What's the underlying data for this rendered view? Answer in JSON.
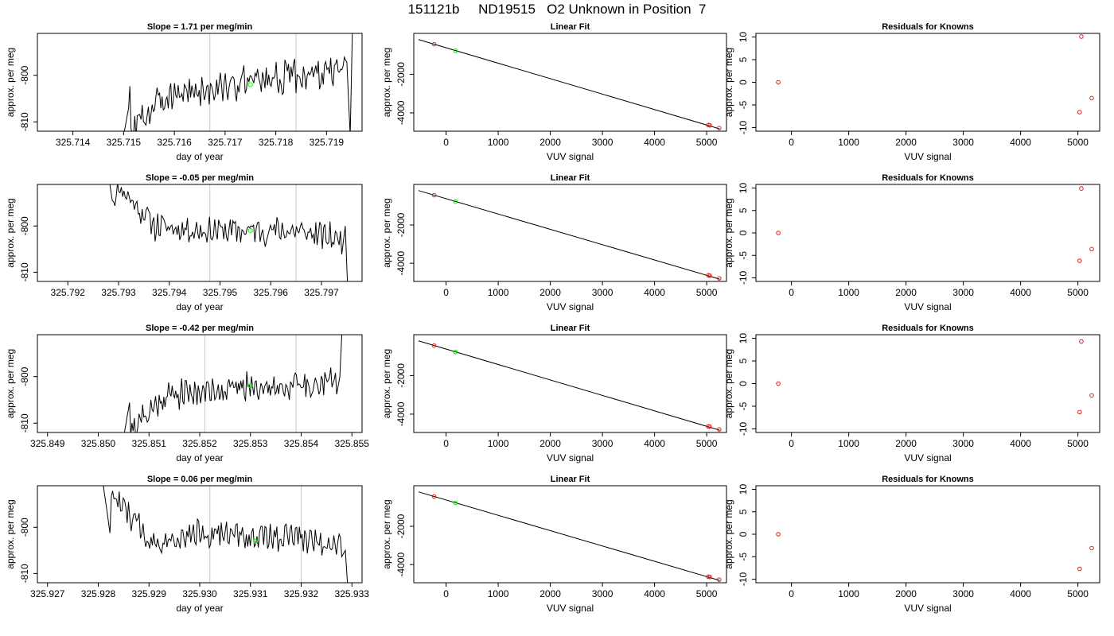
{
  "page": {
    "title": "151121b     ND19515   O2 Unknown in Position  7"
  },
  "chart_data": [
    {
      "type": "line",
      "title": "Slope =  1.71  per meg/min",
      "xlabel": "day of year",
      "ylabel": "approx. per meg",
      "xlim": [
        325.7133,
        325.7197
      ],
      "ylim": [
        -812,
        -791
      ],
      "xticks": [
        "325.714",
        "325.715",
        "325.716",
        "325.717",
        "325.718",
        "325.719"
      ],
      "yticks": [
        "-800",
        "-810"
      ],
      "vlines": [
        325.7167,
        325.7184
      ],
      "point": {
        "x": 325.7175,
        "y": -802,
        "color": "#00ff00"
      },
      "trace": {
        "x_start": 325.715,
        "x_end": 325.7194,
        "trend": [
          -813,
          -804,
          -803,
          -801,
          -800,
          -799
        ],
        "noise": 3,
        "seed": 3,
        "end_spike": [
          -813,
          -790
        ]
      }
    },
    {
      "type": "scatter",
      "title": "Linear Fit",
      "xlabel": "VUV signal",
      "ylabel": "approx. per meg",
      "xlim": [
        -620,
        5380
      ],
      "ylim": [
        -4950,
        120
      ],
      "xticks": [
        "0",
        "1000",
        "2000",
        "3000",
        "4000",
        "5000"
      ],
      "yticks": [
        "-2000",
        "-4000"
      ],
      "fit_line": {
        "x": [
          -530,
          5250
        ],
        "y": [
          -200,
          -4830
        ]
      },
      "known_points": {
        "x": [
          -230,
          5030,
          5060,
          5240
        ],
        "y": [
          -440,
          -4630,
          -4650,
          -4790
        ]
      },
      "unknown_points": {
        "x": [
          180
        ],
        "y": [
          -780
        ]
      }
    },
    {
      "type": "scatter",
      "title": "Residuals for Knowns",
      "xlabel": "VUV signal",
      "ylabel": "approx. per meg",
      "xlim": [
        -620,
        5380
      ],
      "ylim": [
        -10.8,
        10.8
      ],
      "xticks": [
        "0",
        "1000",
        "2000",
        "3000",
        "4000",
        "5000"
      ],
      "yticks": [
        "10",
        "5",
        "0",
        "-5",
        "-10"
      ],
      "points": {
        "x": [
          -230,
          5060,
          5030,
          5240
        ],
        "y": [
          0,
          10.1,
          -6.6,
          -3.5
        ]
      }
    },
    {
      "type": "line",
      "title": "Slope =  -0.05  per meg/min",
      "xlabel": "day of year",
      "ylabel": "approx. per meg",
      "xlim": [
        325.7914,
        325.7978
      ],
      "ylim": [
        -812,
        -791
      ],
      "xticks": [
        "325.792",
        "325.793",
        "325.794",
        "325.795",
        "325.796",
        "325.797"
      ],
      "yticks": [
        "-800",
        "-810"
      ],
      "vlines": [
        325.7948,
        325.7965
      ],
      "point": {
        "x": 325.7956,
        "y": -801,
        "color": "#00ff00"
      },
      "trace": {
        "x_start": 325.7928,
        "x_end": 325.7974,
        "trend": [
          -789,
          -800,
          -801,
          -801,
          -801,
          -803
        ],
        "noise": 2.5,
        "seed": 11,
        "end_spike": [
          -800,
          -813
        ]
      }
    },
    {
      "type": "scatter",
      "title": "Linear Fit",
      "xlabel": "VUV signal",
      "ylabel": "approx. per meg",
      "xlim": [
        -620,
        5380
      ],
      "ylim": [
        -4950,
        120
      ],
      "xticks": [
        "0",
        "1000",
        "2000",
        "3000",
        "4000",
        "5000"
      ],
      "yticks": [
        "-2000",
        "-4000"
      ],
      "fit_line": {
        "x": [
          -530,
          5250
        ],
        "y": [
          -200,
          -4830
        ]
      },
      "known_points": {
        "x": [
          -230,
          5030,
          5060,
          5240
        ],
        "y": [
          -440,
          -4630,
          -4650,
          -4790
        ]
      },
      "unknown_points": {
        "x": [
          180
        ],
        "y": [
          -780
        ]
      }
    },
    {
      "type": "scatter",
      "title": "Residuals for Knowns",
      "xlabel": "VUV signal",
      "ylabel": "approx. per meg",
      "xlim": [
        -620,
        5380
      ],
      "ylim": [
        -10.8,
        10.8
      ],
      "xticks": [
        "0",
        "1000",
        "2000",
        "3000",
        "4000",
        "5000"
      ],
      "yticks": [
        "10",
        "5",
        "0",
        "-5",
        "-10"
      ],
      "points": {
        "x": [
          -230,
          5060,
          5030,
          5240
        ],
        "y": [
          0,
          9.9,
          -6.2,
          -3.6
        ]
      }
    },
    {
      "type": "line",
      "title": "Slope =  -0.42  per meg/min",
      "xlabel": "day of year",
      "ylabel": "approx. per meg",
      "xlim": [
        325.8488,
        325.8552
      ],
      "ylim": [
        -812,
        -791
      ],
      "xticks": [
        "325.849",
        "325.850",
        "325.851",
        "325.852",
        "325.853",
        "325.854",
        "325.855"
      ],
      "yticks": [
        "-800",
        "-810"
      ],
      "vlines": [
        325.8521,
        325.8539
      ],
      "point": {
        "x": 325.853,
        "y": -802,
        "color": "#00ff00"
      },
      "trace": {
        "x_start": 325.8505,
        "x_end": 325.8547,
        "trend": [
          -813,
          -804,
          -803,
          -802,
          -802,
          -801
        ],
        "noise": 2.5,
        "seed": 21,
        "end_spike": [
          -800,
          -790
        ]
      }
    },
    {
      "type": "scatter",
      "title": "Linear Fit",
      "xlabel": "VUV signal",
      "ylabel": "approx. per meg",
      "xlim": [
        -620,
        5380
      ],
      "ylim": [
        -4950,
        120
      ],
      "xticks": [
        "0",
        "1000",
        "2000",
        "3000",
        "4000",
        "5000"
      ],
      "yticks": [
        "-2000",
        "-4000"
      ],
      "fit_line": {
        "x": [
          -530,
          5250
        ],
        "y": [
          -200,
          -4830
        ]
      },
      "known_points": {
        "x": [
          -230,
          5030,
          5060,
          5240
        ],
        "y": [
          -440,
          -4630,
          -4650,
          -4790
        ]
      },
      "unknown_points": {
        "x": [
          180
        ],
        "y": [
          -780
        ]
      }
    },
    {
      "type": "scatter",
      "title": "Residuals for Knowns",
      "xlabel": "VUV signal",
      "ylabel": "approx. per meg",
      "xlim": [
        -620,
        5380
      ],
      "ylim": [
        -10.8,
        10.8
      ],
      "xticks": [
        "0",
        "1000",
        "2000",
        "3000",
        "4000",
        "5000"
      ],
      "yticks": [
        "10",
        "5",
        "0",
        "-5",
        "-10"
      ],
      "points": {
        "x": [
          -230,
          5060,
          5030,
          5240
        ],
        "y": [
          0,
          9.3,
          -6.3,
          -2.6
        ]
      }
    },
    {
      "type": "line",
      "title": "Slope =  0.06  per meg/min",
      "xlabel": "day of year",
      "ylabel": "approx. per meg",
      "xlim": [
        325.9268,
        325.9332
      ],
      "ylim": [
        -812,
        -791
      ],
      "xticks": [
        "325.927",
        "325.928",
        "325.929",
        "325.930",
        "325.931",
        "325.932",
        "325.933"
      ],
      "yticks": [
        "-800",
        "-810"
      ],
      "vlines": [
        325.9302,
        325.932
      ],
      "point": {
        "x": 325.9311,
        "y": -803,
        "color": "#00ff00"
      },
      "trace": {
        "x_start": 325.9281,
        "x_end": 325.9328,
        "trend": [
          -791,
          -803,
          -801,
          -802,
          -802,
          -804
        ],
        "noise": 2.5,
        "seed": 33,
        "end_spike": [
          -805,
          -813
        ]
      }
    },
    {
      "type": "scatter",
      "title": "Linear Fit",
      "xlabel": "VUV signal",
      "ylabel": "approx. per meg",
      "xlim": [
        -620,
        5380
      ],
      "ylim": [
        -4950,
        120
      ],
      "xticks": [
        "0",
        "1000",
        "2000",
        "3000",
        "4000",
        "5000"
      ],
      "yticks": [
        "-2000",
        "-4000"
      ],
      "fit_line": {
        "x": [
          -530,
          5250
        ],
        "y": [
          -200,
          -4830
        ]
      },
      "known_points": {
        "x": [
          -230,
          5030,
          5060,
          5240
        ],
        "y": [
          -440,
          -4630,
          -4650,
          -4790
        ]
      },
      "unknown_points": {
        "x": [
          180
        ],
        "y": [
          -780
        ]
      }
    },
    {
      "type": "scatter",
      "title": "Residuals for Knowns",
      "xlabel": "VUV signal",
      "ylabel": "approx. per meg",
      "xlim": [
        -620,
        5380
      ],
      "ylim": [
        -10.8,
        10.8
      ],
      "xticks": [
        "0",
        "1000",
        "2000",
        "3000",
        "4000",
        "5000"
      ],
      "yticks": [
        "10",
        "5",
        "0",
        "-5",
        "-10"
      ],
      "points": {
        "x": [
          -230,
          5030,
          5240
        ],
        "y": [
          0,
          -7.7,
          -3.1
        ]
      }
    }
  ]
}
